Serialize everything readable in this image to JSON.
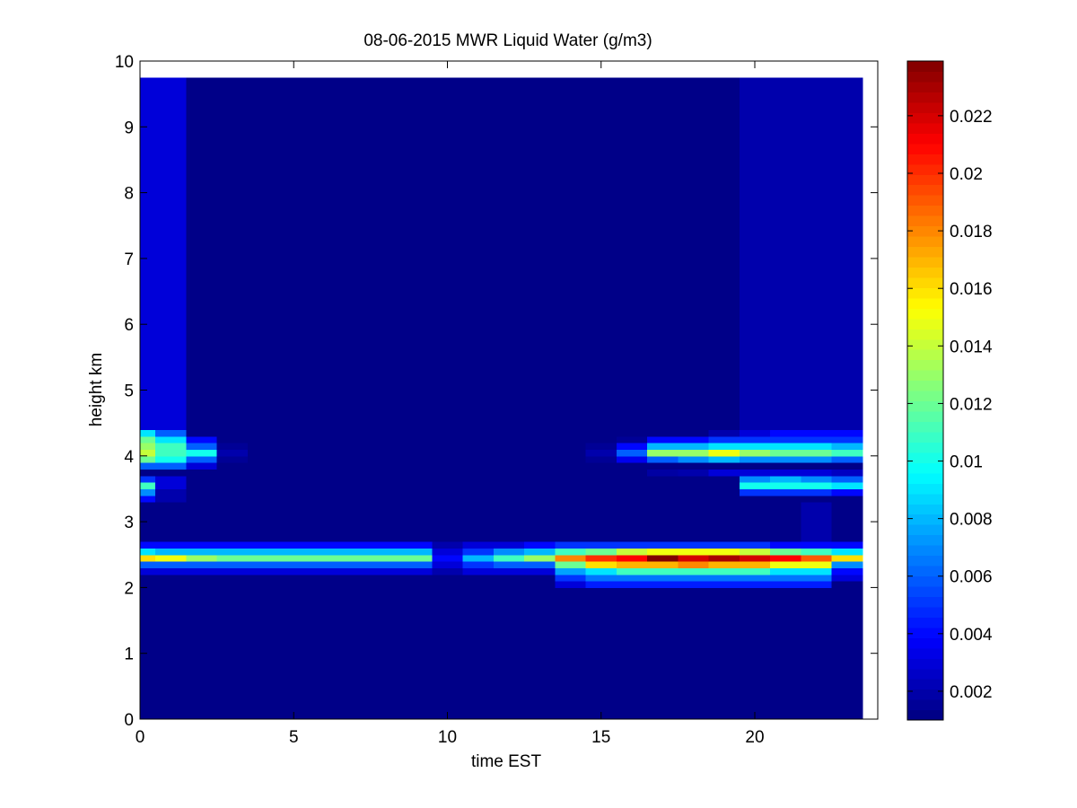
{
  "chart_data": {
    "type": "heatmap",
    "title": "08-06-2015 MWR Liquid Water (g/m3)",
    "xlabel": "time EST",
    "ylabel": "height km",
    "xlim": [
      0,
      24
    ],
    "ylim": [
      0,
      10
    ],
    "xticks": [
      "0",
      "5",
      "10",
      "15",
      "20"
    ],
    "yticks": [
      "0",
      "1",
      "2",
      "3",
      "4",
      "5",
      "6",
      "7",
      "8",
      "9",
      "10"
    ],
    "colorbar": {
      "colormap": "jet",
      "clim": [
        0.001,
        0.0239
      ],
      "ticks": [
        "0.002",
        "0.004",
        "0.006",
        "0.008",
        "0.01",
        "0.012",
        "0.014",
        "0.016",
        "0.018",
        "0.02",
        "0.022"
      ]
    },
    "grid": false,
    "x_cell_edges": [
      0,
      0.5,
      1.5,
      2.5,
      3.5,
      4.5,
      5.5,
      6.5,
      7.5,
      8.5,
      9.5,
      10.5,
      11.5,
      12.5,
      13.5,
      14.5,
      15.5,
      16.5,
      17.5,
      18.5,
      19.5,
      20.5,
      21.5,
      22.5,
      23.5
    ],
    "y_cell_edges": [
      0,
      2.0,
      2.1,
      2.2,
      2.3,
      2.4,
      2.5,
      2.6,
      2.7,
      3.3,
      3.4,
      3.5,
      3.6,
      3.7,
      3.8,
      3.9,
      4.0,
      4.1,
      4.2,
      4.3,
      4.4,
      9.75
    ],
    "background_value": 0.0012,
    "values": [
      [
        0.0012,
        0.0012,
        0.0012,
        0.0012,
        0.0012,
        0.0012,
        0.0012,
        0.0012,
        0.0012,
        0.0012,
        0.0012,
        0.0012,
        0.0012,
        0.0012,
        0.0012,
        0.0012,
        0.0012,
        0.0012,
        0.0012,
        0.0012,
        0.0012,
        0.0012,
        0.0012,
        0.0012
      ],
      [
        0.0012,
        0.0012,
        0.0012,
        0.0012,
        0.0012,
        0.0012,
        0.0012,
        0.0012,
        0.0012,
        0.0012,
        0.0012,
        0.0012,
        0.0012,
        0.0012,
        0.003,
        0.0045,
        0.0045,
        0.0045,
        0.0045,
        0.0045,
        0.0045,
        0.0045,
        0.0045,
        0.0012
      ],
      [
        0.0012,
        0.0012,
        0.0012,
        0.0012,
        0.0012,
        0.0012,
        0.0012,
        0.0012,
        0.0012,
        0.0012,
        0.0012,
        0.0012,
        0.0012,
        0.0012,
        0.005,
        0.0065,
        0.0065,
        0.0065,
        0.0065,
        0.0065,
        0.0065,
        0.0065,
        0.0065,
        0.003
      ],
      [
        0.003,
        0.003,
        0.003,
        0.003,
        0.003,
        0.003,
        0.003,
        0.003,
        0.003,
        0.003,
        0.002,
        0.003,
        0.003,
        0.003,
        0.0075,
        0.009,
        0.011,
        0.011,
        0.011,
        0.011,
        0.011,
        0.009,
        0.009,
        0.004
      ],
      [
        0.006,
        0.006,
        0.006,
        0.006,
        0.006,
        0.006,
        0.006,
        0.006,
        0.006,
        0.006,
        0.003,
        0.005,
        0.006,
        0.006,
        0.012,
        0.016,
        0.017,
        0.017,
        0.018,
        0.017,
        0.017,
        0.015,
        0.015,
        0.007
      ],
      [
        0.016,
        0.015,
        0.013,
        0.012,
        0.012,
        0.012,
        0.012,
        0.012,
        0.012,
        0.012,
        0.004,
        0.008,
        0.011,
        0.013,
        0.018,
        0.02,
        0.021,
        0.024,
        0.022,
        0.023,
        0.022,
        0.021,
        0.019,
        0.016
      ],
      [
        0.009,
        0.008,
        0.008,
        0.008,
        0.008,
        0.008,
        0.008,
        0.008,
        0.008,
        0.008,
        0.003,
        0.005,
        0.007,
        0.008,
        0.011,
        0.012,
        0.014,
        0.015,
        0.015,
        0.015,
        0.014,
        0.012,
        0.011,
        0.009
      ],
      [
        0.004,
        0.004,
        0.004,
        0.004,
        0.004,
        0.004,
        0.004,
        0.004,
        0.004,
        0.004,
        0.002,
        0.003,
        0.003,
        0.004,
        0.005,
        0.005,
        0.005,
        0.005,
        0.005,
        0.005,
        0.005,
        0.004,
        0.004,
        0.004
      ],
      [
        0.0012,
        0.0012,
        0.0012,
        0.0012,
        0.0012,
        0.0012,
        0.0012,
        0.0012,
        0.0012,
        0.0012,
        0.0012,
        0.0012,
        0.0012,
        0.0012,
        0.0012,
        0.0012,
        0.0012,
        0.0012,
        0.0012,
        0.0012,
        0.0012,
        0.0012,
        0.002,
        0.0012
      ],
      [
        0.004,
        0.002,
        0.0012,
        0.0012,
        0.0012,
        0.0012,
        0.0012,
        0.0012,
        0.0012,
        0.0012,
        0.0012,
        0.0012,
        0.0012,
        0.0012,
        0.0012,
        0.0012,
        0.0012,
        0.0012,
        0.0012,
        0.0012,
        0.0012,
        0.0012,
        0.0012,
        0.0012
      ],
      [
        0.007,
        0.002,
        0.0012,
        0.0012,
        0.0012,
        0.0012,
        0.0012,
        0.0012,
        0.0012,
        0.0012,
        0.0012,
        0.0012,
        0.0012,
        0.0012,
        0.0012,
        0.0012,
        0.0012,
        0.0012,
        0.0012,
        0.0012,
        0.005,
        0.005,
        0.005,
        0.004
      ],
      [
        0.011,
        0.003,
        0.0012,
        0.0012,
        0.0012,
        0.0012,
        0.0012,
        0.0012,
        0.0012,
        0.0012,
        0.0012,
        0.0012,
        0.0012,
        0.0012,
        0.0012,
        0.0012,
        0.0012,
        0.0012,
        0.0012,
        0.0012,
        0.01,
        0.01,
        0.01,
        0.009
      ],
      [
        0.005,
        0.003,
        0.0012,
        0.0012,
        0.0012,
        0.0012,
        0.0012,
        0.0012,
        0.0012,
        0.0012,
        0.0012,
        0.0012,
        0.0012,
        0.0012,
        0.0012,
        0.0012,
        0.0012,
        0.0012,
        0.0012,
        0.0012,
        0.007,
        0.008,
        0.007,
        0.006
      ],
      [
        0.0012,
        0.0012,
        0.0012,
        0.0012,
        0.0012,
        0.0012,
        0.0012,
        0.0012,
        0.0012,
        0.0012,
        0.0012,
        0.0012,
        0.0012,
        0.0012,
        0.0012,
        0.0012,
        0.0012,
        0.0018,
        0.002,
        0.003,
        0.003,
        0.003,
        0.003,
        0.0025
      ],
      [
        0.006,
        0.006,
        0.003,
        0.0012,
        0.0012,
        0.0012,
        0.0012,
        0.0012,
        0.0012,
        0.0012,
        0.0012,
        0.0012,
        0.0012,
        0.0012,
        0.0012,
        0.0012,
        0.0012,
        0.0012,
        0.0012,
        0.0012,
        0.0012,
        0.0012,
        0.0012,
        0.0012
      ],
      [
        0.012,
        0.01,
        0.006,
        0.0015,
        0.0012,
        0.0012,
        0.0012,
        0.0012,
        0.0012,
        0.0012,
        0.0012,
        0.0012,
        0.0012,
        0.0012,
        0.0012,
        0.0015,
        0.0035,
        0.006,
        0.007,
        0.008,
        0.007,
        0.007,
        0.007,
        0.006
      ],
      [
        0.014,
        0.011,
        0.01,
        0.002,
        0.0012,
        0.0012,
        0.0012,
        0.0012,
        0.0012,
        0.0012,
        0.0012,
        0.0012,
        0.0012,
        0.0012,
        0.0012,
        0.002,
        0.006,
        0.013,
        0.013,
        0.015,
        0.013,
        0.012,
        0.012,
        0.011
      ],
      [
        0.013,
        0.011,
        0.006,
        0.0015,
        0.0012,
        0.0012,
        0.0012,
        0.0012,
        0.0012,
        0.0012,
        0.0012,
        0.0012,
        0.0012,
        0.0012,
        0.0012,
        0.0015,
        0.004,
        0.008,
        0.008,
        0.009,
        0.009,
        0.009,
        0.009,
        0.008
      ],
      [
        0.012,
        0.009,
        0.004,
        0.0012,
        0.0012,
        0.0012,
        0.0012,
        0.0012,
        0.0012,
        0.0012,
        0.0012,
        0.0012,
        0.0012,
        0.0012,
        0.0012,
        0.0012,
        0.0015,
        0.004,
        0.004,
        0.005,
        0.005,
        0.005,
        0.005,
        0.005
      ],
      [
        0.009,
        0.006,
        0.0012,
        0.0012,
        0.0012,
        0.0012,
        0.0012,
        0.0012,
        0.0012,
        0.0012,
        0.0012,
        0.0012,
        0.0012,
        0.0012,
        0.0012,
        0.0012,
        0.0012,
        0.0012,
        0.0012,
        0.002,
        0.003,
        0.004,
        0.004,
        0.004
      ],
      [
        0.003,
        0.003,
        0.0012,
        0.0012,
        0.0012,
        0.0012,
        0.0012,
        0.0012,
        0.0012,
        0.0012,
        0.0012,
        0.0012,
        0.0012,
        0.0012,
        0.0012,
        0.0012,
        0.0012,
        0.0012,
        0.0012,
        0.0012,
        0.002,
        0.002,
        0.002,
        0.002
      ]
    ]
  }
}
